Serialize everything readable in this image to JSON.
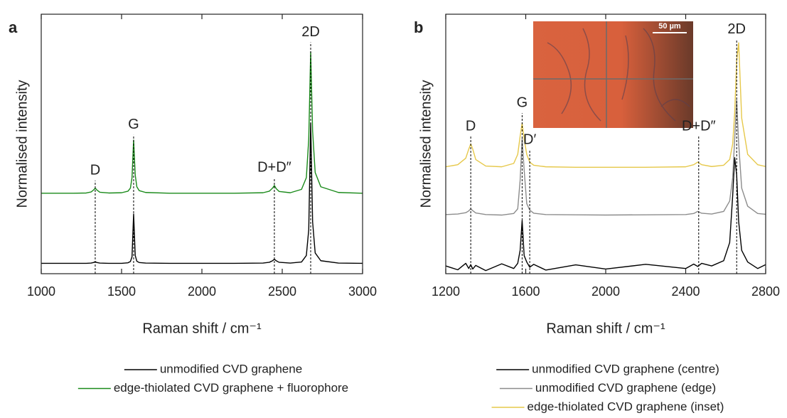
{
  "chart_data": [
    {
      "type": "line",
      "panel": "a",
      "xlabel": "Raman shift / cm⁻¹",
      "ylabel": "Normalised intensity",
      "xlim": [
        1000,
        3000
      ],
      "xticks": [
        1000,
        1500,
        2000,
        2500,
        3000
      ],
      "ylim": [
        0,
        1
      ],
      "x": [
        1000,
        1100,
        1200,
        1280,
        1310,
        1325,
        1336,
        1347,
        1365,
        1420,
        1500,
        1540,
        1555,
        1565,
        1575,
        1585,
        1595,
        1610,
        1650,
        1800,
        2000,
        2200,
        2380,
        2420,
        2440,
        2451,
        2462,
        2480,
        2550,
        2620,
        2650,
        2665,
        2677,
        2689,
        2705,
        2740,
        2850,
        3000
      ],
      "series": [
        {
          "name": "unmodified CVD graphene",
          "color": "#000000",
          "values": [
            0.04,
            0.04,
            0.04,
            0.04,
            0.041,
            0.043,
            0.046,
            0.043,
            0.041,
            0.04,
            0.04,
            0.042,
            0.047,
            0.065,
            0.23,
            0.07,
            0.048,
            0.043,
            0.041,
            0.04,
            0.04,
            0.04,
            0.041,
            0.044,
            0.05,
            0.056,
            0.05,
            0.044,
            0.041,
            0.045,
            0.07,
            0.17,
            0.58,
            0.2,
            0.08,
            0.05,
            0.041,
            0.04
          ]
        },
        {
          "name": "edge-thiolated CVD graphene + fluorophore",
          "color": "#1a8a1a",
          "values": [
            0.31,
            0.31,
            0.31,
            0.311,
            0.315,
            0.322,
            0.33,
            0.322,
            0.314,
            0.311,
            0.312,
            0.318,
            0.33,
            0.37,
            0.515,
            0.38,
            0.335,
            0.32,
            0.313,
            0.31,
            0.31,
            0.31,
            0.312,
            0.318,
            0.33,
            0.34,
            0.328,
            0.317,
            0.312,
            0.325,
            0.37,
            0.52,
            0.855,
            0.55,
            0.39,
            0.335,
            0.313,
            0.31
          ]
        }
      ],
      "annotations": [
        {
          "text": "D",
          "x": 1336,
          "y": 0.397
        },
        {
          "text": "G",
          "x": 1575,
          "y": 0.573
        },
        {
          "text": "D+D″",
          "x": 2451,
          "y": 0.408
        },
        {
          "text": "2D",
          "x": 2677,
          "y": 0.93
        }
      ]
    },
    {
      "type": "line",
      "panel": "b",
      "xlabel": "Raman shift / cm⁻¹",
      "ylabel": "Normalised intensity",
      "xlim": [
        1200,
        2800
      ],
      "xticks": [
        1200,
        1600,
        2000,
        2400,
        2800
      ],
      "ylim": [
        0,
        1
      ],
      "inset_scale_label": "50 µm",
      "x": [
        1200,
        1260,
        1300,
        1315,
        1325,
        1335,
        1350,
        1400,
        1480,
        1540,
        1560,
        1572,
        1582,
        1592,
        1605,
        1620,
        1640,
        1700,
        1850,
        2000,
        2200,
        2400,
        2440,
        2460,
        2480,
        2530,
        2590,
        2620,
        2635,
        2645,
        2655,
        2665,
        2680,
        2710,
        2760,
        2800
      ],
      "series": [
        {
          "name": "unmodified CVD graphene (centre)",
          "color": "#000000",
          "values": [
            0.03,
            0.015,
            0.04,
            0.02,
            0.035,
            0.018,
            0.032,
            0.012,
            0.038,
            0.02,
            0.04,
            0.09,
            0.205,
            0.07,
            0.045,
            0.025,
            0.036,
            0.014,
            0.034,
            0.018,
            0.036,
            0.02,
            0.037,
            0.028,
            0.04,
            0.03,
            0.05,
            0.12,
            0.3,
            0.447,
            0.38,
            0.2,
            0.09,
            0.045,
            0.02,
            0.035
          ]
        },
        {
          "name": "unmodified CVD graphene (edge)",
          "color": "#8c8c8c",
          "values": [
            0.228,
            0.23,
            0.235,
            0.242,
            0.25,
            0.243,
            0.234,
            0.228,
            0.226,
            0.232,
            0.25,
            0.36,
            0.52,
            0.4,
            0.27,
            0.245,
            0.233,
            0.228,
            0.227,
            0.226,
            0.227,
            0.228,
            0.232,
            0.24,
            0.233,
            0.23,
            0.24,
            0.28,
            0.37,
            0.52,
            0.67,
            0.5,
            0.33,
            0.26,
            0.232,
            0.229
          ]
        },
        {
          "name": "edge-thiolated CVD graphene (inset)",
          "color": "#e6c84a",
          "values": [
            0.412,
            0.42,
            0.445,
            0.48,
            0.5,
            0.48,
            0.44,
            0.415,
            0.412,
            0.425,
            0.46,
            0.53,
            0.58,
            0.52,
            0.46,
            0.43,
            0.418,
            0.412,
            0.41,
            0.41,
            0.41,
            0.412,
            0.42,
            0.43,
            0.42,
            0.413,
            0.418,
            0.44,
            0.5,
            0.62,
            0.82,
            0.89,
            0.6,
            0.46,
            0.42,
            0.413
          ]
        }
      ],
      "annotations": [
        {
          "text": "D",
          "x": 1325,
          "y": 0.567
        },
        {
          "text": "G",
          "x": 1582,
          "y": 0.657
        },
        {
          "text": "D′",
          "x": 1620,
          "y": 0.515
        },
        {
          "text": "D+D″",
          "x": 2465,
          "y": 0.567
        },
        {
          "text": "2D",
          "x": 2655,
          "y": 0.94
        }
      ]
    }
  ]
}
